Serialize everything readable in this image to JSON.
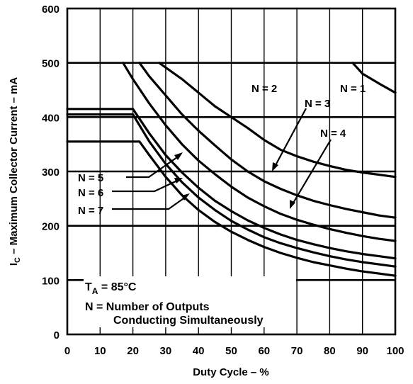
{
  "chart_data": {
    "type": "line",
    "title": "",
    "xlabel": "Duty Cycle – %",
    "ylabel_main": "I",
    "ylabel_sub": "C",
    "ylabel_rest": " – Maximum Collector Current – mA",
    "xlim": [
      0,
      100
    ],
    "ylim": [
      0,
      600
    ],
    "xticks": [
      "0",
      "10",
      "20",
      "30",
      "40",
      "50",
      "60",
      "70",
      "80",
      "90",
      "100"
    ],
    "yticks": [
      "0",
      "100",
      "200",
      "300",
      "400",
      "500",
      "600"
    ],
    "grid": true,
    "annotations": {
      "temp_main": "T",
      "temp_sub": "A",
      "temp_rest": " = 85°C",
      "legend_line1": "N = Number of Outputs",
      "legend_line2": "Conducting Simultaneously"
    },
    "series": [
      {
        "name": "N = 1",
        "points": [
          [
            87,
            500
          ],
          [
            90,
            480
          ],
          [
            95,
            462
          ],
          [
            100,
            445
          ]
        ]
      },
      {
        "name": "N = 2",
        "points": [
          [
            28,
            500
          ],
          [
            35,
            470
          ],
          [
            40,
            445
          ],
          [
            45,
            420
          ],
          [
            50,
            400
          ],
          [
            55,
            380
          ],
          [
            60,
            358
          ],
          [
            65,
            340
          ],
          [
            70,
            328
          ],
          [
            75,
            318
          ],
          [
            80,
            310
          ],
          [
            85,
            303
          ],
          [
            90,
            298
          ],
          [
            95,
            294
          ],
          [
            100,
            290
          ]
        ]
      },
      {
        "name": "N = 3",
        "points": [
          [
            22,
            500
          ],
          [
            25,
            475
          ],
          [
            30,
            440
          ],
          [
            35,
            405
          ],
          [
            40,
            375
          ],
          [
            45,
            348
          ],
          [
            50,
            322
          ],
          [
            55,
            300
          ],
          [
            60,
            282
          ],
          [
            65,
            268
          ],
          [
            70,
            256
          ],
          [
            75,
            246
          ],
          [
            80,
            238
          ],
          [
            85,
            231
          ],
          [
            90,
            225
          ],
          [
            95,
            219
          ],
          [
            100,
            215
          ]
        ]
      },
      {
        "name": "N = 4",
        "points": [
          [
            17,
            500
          ],
          [
            20,
            470
          ],
          [
            25,
            425
          ],
          [
            30,
            385
          ],
          [
            35,
            350
          ],
          [
            40,
            320
          ],
          [
            45,
            295
          ],
          [
            50,
            272
          ],
          [
            55,
            252
          ],
          [
            60,
            236
          ],
          [
            65,
            222
          ],
          [
            70,
            211
          ],
          [
            75,
            202
          ],
          [
            80,
            194
          ],
          [
            85,
            187
          ],
          [
            90,
            181
          ],
          [
            95,
            176
          ],
          [
            100,
            172
          ]
        ]
      },
      {
        "name": "N = 5",
        "points": [
          [
            0,
            415
          ],
          [
            20,
            415
          ],
          [
            25,
            370
          ],
          [
            30,
            330
          ],
          [
            35,
            298
          ],
          [
            40,
            270
          ],
          [
            45,
            246
          ],
          [
            50,
            227
          ],
          [
            55,
            210
          ],
          [
            60,
            196
          ],
          [
            65,
            184
          ],
          [
            70,
            174
          ],
          [
            75,
            166
          ],
          [
            80,
            159
          ],
          [
            85,
            153
          ],
          [
            90,
            148
          ],
          [
            95,
            144
          ],
          [
            100,
            140
          ]
        ]
      },
      {
        "name": "N = 6",
        "points": [
          [
            0,
            405
          ],
          [
            20,
            405
          ],
          [
            25,
            355
          ],
          [
            30,
            314
          ],
          [
            35,
            280
          ],
          [
            40,
            252
          ],
          [
            45,
            229
          ],
          [
            50,
            209
          ],
          [
            55,
            193
          ],
          [
            60,
            179
          ],
          [
            65,
            168
          ],
          [
            70,
            159
          ],
          [
            75,
            151
          ],
          [
            80,
            144
          ],
          [
            85,
            138
          ],
          [
            90,
            133
          ],
          [
            95,
            129
          ],
          [
            100,
            125
          ]
        ]
      },
      {
        "name": "N = 7",
        "points": [
          [
            0,
            355
          ],
          [
            22,
            355
          ],
          [
            25,
            330
          ],
          [
            30,
            290
          ],
          [
            35,
            256
          ],
          [
            40,
            229
          ],
          [
            45,
            207
          ],
          [
            50,
            189
          ],
          [
            55,
            174
          ],
          [
            60,
            161
          ],
          [
            65,
            150
          ],
          [
            70,
            141
          ],
          [
            75,
            133
          ],
          [
            80,
            127
          ],
          [
            85,
            121
          ],
          [
            90,
            116
          ],
          [
            95,
            112
          ],
          [
            100,
            108
          ]
        ]
      }
    ]
  }
}
